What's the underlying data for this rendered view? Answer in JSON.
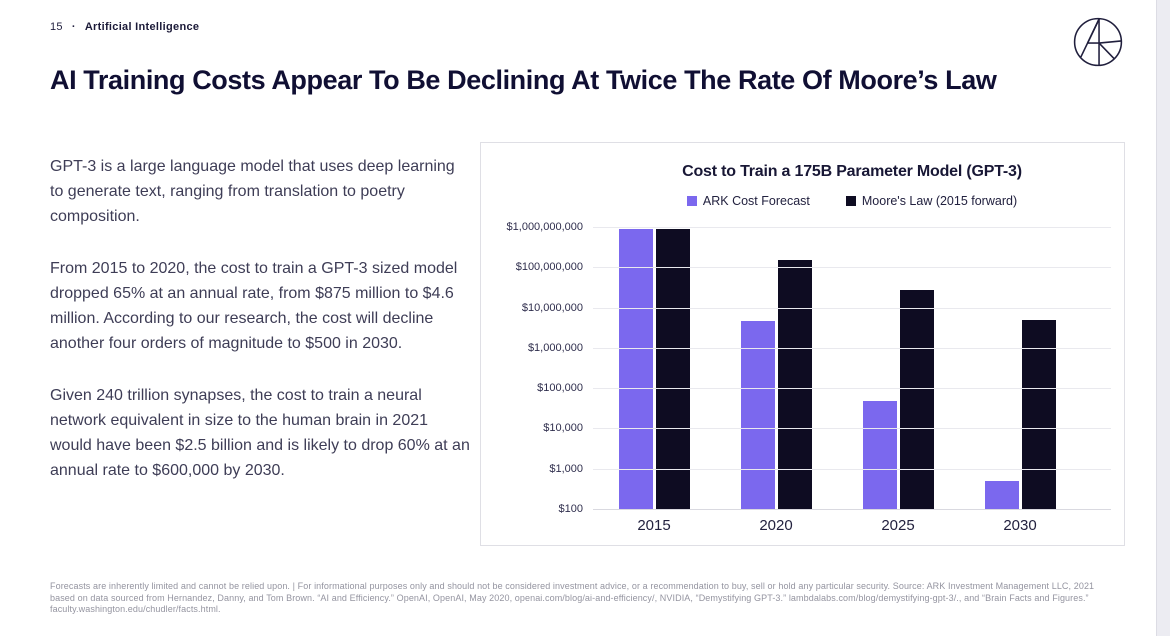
{
  "page": {
    "page_number": "15",
    "separator": "·",
    "section": "Artificial Intelligence",
    "title": "AI Training Costs Appear To Be Declining At Twice The Rate Of Moore’s Law",
    "paragraphs": [
      "GPT-3 is a large language model that uses deep learning to generate text, ranging from translation to poetry composition.",
      "From 2015 to 2020, the cost to train a GPT-3 sized model dropped 65% at an annual rate, from $875 million to $4.6 million. According to our research, the cost will decline another four orders of magnitude to $500 in 2030.",
      "Given 240 trillion synapses, the cost to train a neural network equivalent in size to the human brain in 2021 would have been $2.5 billion and is likely to drop 60% at an annual rate to $600,000 by 2030."
    ],
    "footnote": "Forecasts are inherently limited and cannot be relied upon. | For informational purposes only and should not be considered investment advice, or a recommendation to buy, sell or hold any particular security. Source: ARK Investment Management LLC, 2021 based on data sourced from Hernandez, Danny, and Tom Brown. “AI and Efficiency.” OpenAI, OpenAI, May 2020, openai.com/blog/ai-and-efficiency/, NVIDIA, “Demystifying GPT-3.” lambdalabs.com/blog/demystifying-gpt-3/., and “Brain Facts and Figures.” faculty.washington.edu/chudler/facts.html.",
    "logo": "ARK Invest monogram"
  },
  "colors": {
    "accent_purple": "#7B68EE",
    "dark_navy": "#0E0C22",
    "heading": "#100F33",
    "body_text": "#3E3D56",
    "footnote_text": "#9494A0",
    "gridline": "#E9E9EE",
    "card_border": "#DFDFE5"
  },
  "chart_data": {
    "type": "bar",
    "title": "Cost to Train a 175B Parameter Model (GPT-3)",
    "categories": [
      "2015",
      "2020",
      "2025",
      "2030"
    ],
    "series": [
      {
        "name": "ARK Cost Forecast",
        "color": "#7B68EE",
        "values": [
          875000000,
          4600000,
          47000,
          500
        ]
      },
      {
        "name": "Moore's Law (2015 forward)",
        "color": "#0E0C22",
        "values": [
          875000000,
          155000000,
          28000000,
          5000000
        ]
      }
    ],
    "y_axis": {
      "scale": "log",
      "min": 100,
      "max": 1000000000,
      "tick_labels": [
        "$1,000,000,000",
        "$100,000,000",
        "$10,000,000",
        "$1,000,000",
        "$100,000",
        "$10,000",
        "$1,000",
        "$100"
      ]
    },
    "legend_position": "top",
    "grid": "horizontal"
  }
}
